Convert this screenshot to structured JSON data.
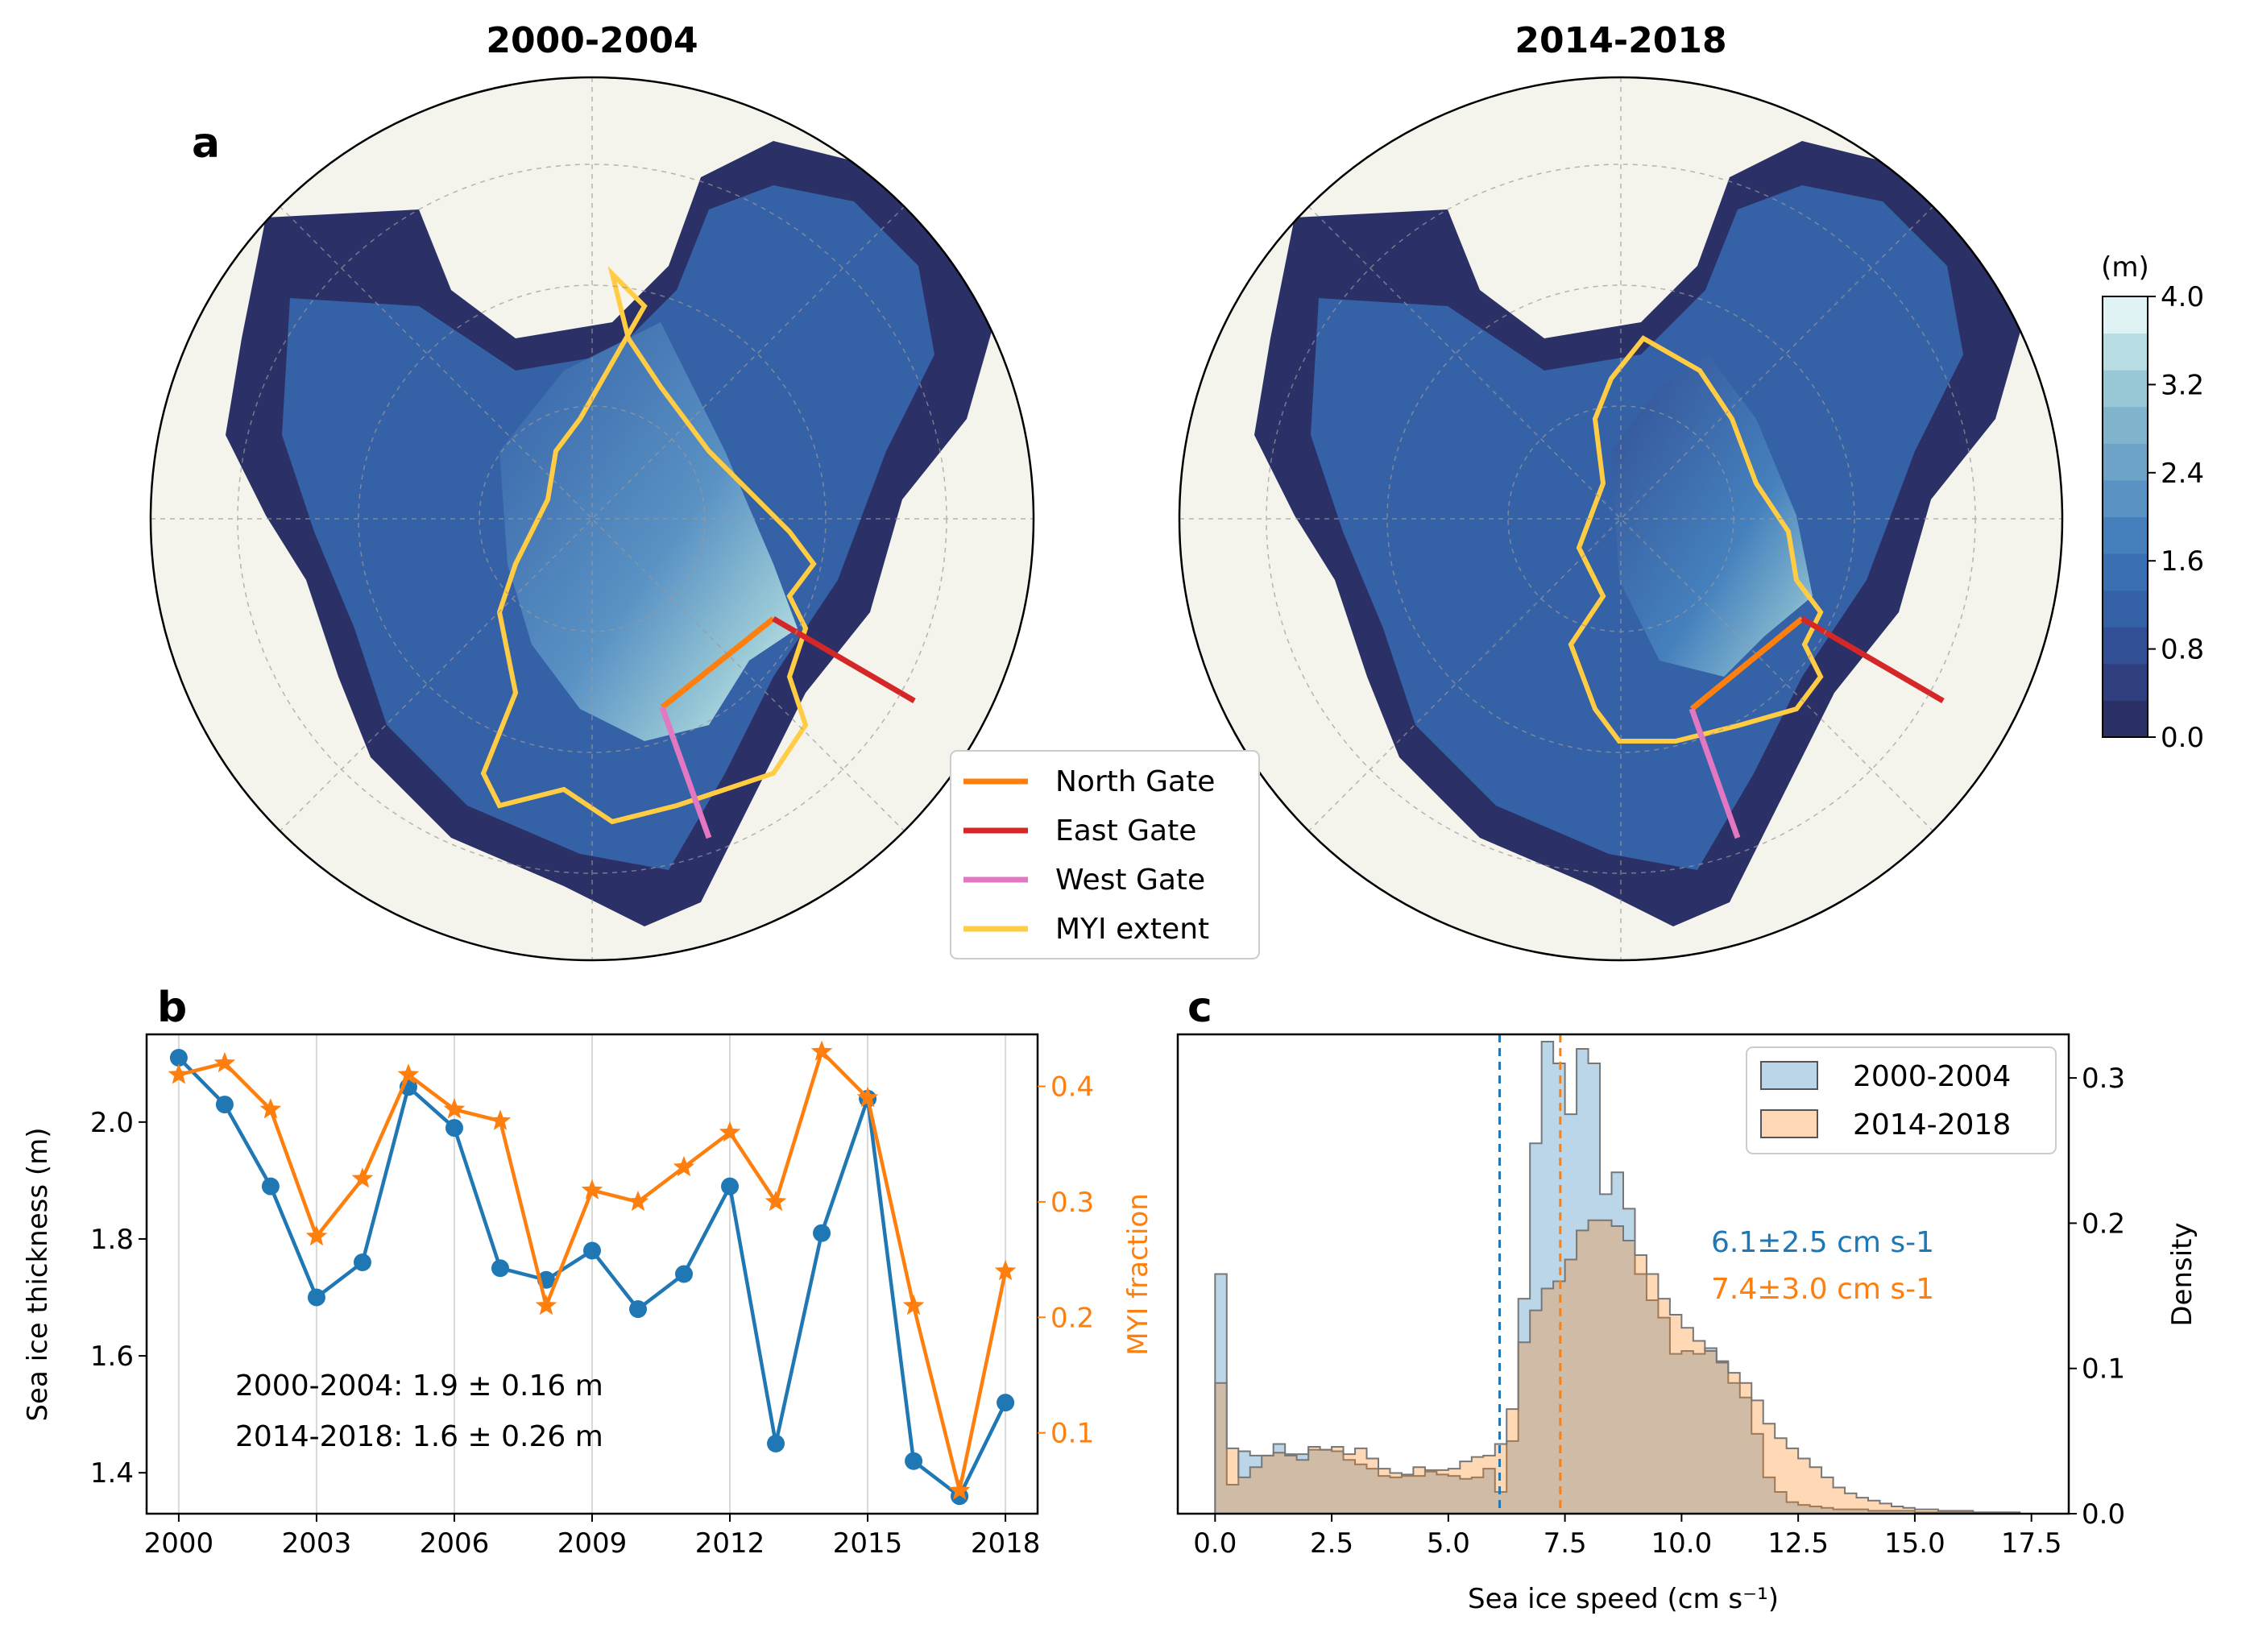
{
  "colors": {
    "series_2000": "#1f77b4",
    "series_2014": "#ff7f0e",
    "north_gate": "#ff7f0e",
    "east_gate": "#d62728",
    "west_gate": "#e377c2",
    "myi_extent": "#ffcc44",
    "land": "#f5f4ec",
    "colormap": [
      "#2b3167",
      "#2f3f7f",
      "#324f95",
      "#3561a7",
      "#3a6fb3",
      "#4580bd",
      "#5a92c4",
      "#6ea3c8",
      "#80b4cd",
      "#98c8d6",
      "#b7dde3",
      "#dff2f4"
    ]
  },
  "panel_a": {
    "label": "a",
    "maps": [
      {
        "title": "2000-2004"
      },
      {
        "title": "2014-2018"
      }
    ],
    "colorbar": {
      "unit": "(m)",
      "min": 0.0,
      "max": 4.0,
      "ticks": [
        "0.0",
        "0.8",
        "1.6",
        "2.4",
        "3.2",
        "4.0"
      ]
    },
    "legend": [
      {
        "label": "North Gate",
        "color": "#ff7f0e"
      },
      {
        "label": "East Gate",
        "color": "#d62728"
      },
      {
        "label": "West Gate",
        "color": "#e377c2"
      },
      {
        "label": "MYI extent",
        "color": "#ffcc44"
      }
    ]
  },
  "chart_data": [
    {
      "panel": "b",
      "type": "line",
      "x": [
        2000,
        2001,
        2002,
        2003,
        2004,
        2005,
        2006,
        2007,
        2008,
        2009,
        2010,
        2011,
        2012,
        2013,
        2014,
        2015,
        2016,
        2017,
        2018
      ],
      "series": [
        {
          "axis": "left",
          "marker": "circle",
          "color": "#1f77b4",
          "values": [
            2.11,
            2.03,
            1.89,
            1.7,
            1.76,
            2.06,
            1.99,
            1.75,
            1.73,
            1.78,
            1.68,
            1.74,
            1.89,
            1.45,
            1.81,
            2.04,
            1.42,
            1.36,
            1.52
          ]
        },
        {
          "axis": "right",
          "marker": "star",
          "color": "#ff7f0e",
          "values": [
            0.41,
            0.42,
            0.38,
            0.27,
            0.32,
            0.41,
            0.38,
            0.37,
            0.21,
            0.31,
            0.3,
            0.33,
            0.36,
            0.3,
            0.43,
            0.39,
            0.21,
            0.05,
            0.24
          ]
        }
      ],
      "xticks": [
        "2000",
        "2003",
        "2006",
        "2009",
        "2012",
        "2015",
        "2018"
      ],
      "xlim": [
        1999.3,
        2018.7
      ],
      "ylabel": "Sea ice thickness (m)",
      "ylim": [
        1.33,
        2.15
      ],
      "yticks": [
        "1.4",
        "1.6",
        "1.8",
        "2.0"
      ],
      "y2label": "MYI fraction",
      "y2lim": [
        0.03,
        0.445
      ],
      "y2ticks": [
        "0.1",
        "0.2",
        "0.3",
        "0.4"
      ],
      "annotations": [
        "2000-2004: 1.9 ± 0.16 m",
        "2014-2018: 1.6 ± 0.26 m"
      ],
      "grid": "x"
    },
    {
      "panel": "c",
      "type": "histogram",
      "bin_width": 0.25,
      "bin_start": 0,
      "series": [
        {
          "name": "2000-2004",
          "color": "#1f77b4",
          "mean": 6.1,
          "density": [
            0.165,
            0.02,
            0.043,
            0.04,
            0.04,
            0.048,
            0.041,
            0.041,
            0.044,
            0.044,
            0.043,
            0.037,
            0.034,
            0.031,
            0.026,
            0.025,
            0.026,
            0.026,
            0.029,
            0.027,
            0.026,
            0.024,
            0.025,
            0.031,
            0.015,
            0.05,
            0.148,
            0.255,
            0.325,
            0.31,
            0.275,
            0.32,
            0.31,
            0.22,
            0.235,
            0.21,
            0.165,
            0.147,
            0.135,
            0.11,
            0.112,
            0.11,
            0.114,
            0.105,
            0.09,
            0.08,
            0.055,
            0.025,
            0.015,
            0.008,
            0.006,
            0.005,
            0.004,
            0.003,
            0.003,
            0.003,
            0.002,
            0.002,
            0.002,
            0.002,
            0.001,
            0.001,
            0.001,
            0.001,
            0.001,
            0.0,
            0.0,
            0.0,
            0.0,
            0.0
          ]
        },
        {
          "name": "2014-2018",
          "color": "#ff7f0e",
          "mean": 7.4,
          "density": [
            0.09,
            0.045,
            0.025,
            0.032,
            0.04,
            0.042,
            0.04,
            0.037,
            0.046,
            0.044,
            0.046,
            0.041,
            0.045,
            0.038,
            0.031,
            0.028,
            0.027,
            0.032,
            0.03,
            0.03,
            0.031,
            0.036,
            0.039,
            0.04,
            0.048,
            0.072,
            0.118,
            0.14,
            0.155,
            0.16,
            0.175,
            0.195,
            0.202,
            0.202,
            0.198,
            0.188,
            0.178,
            0.165,
            0.148,
            0.137,
            0.128,
            0.119,
            0.112,
            0.104,
            0.097,
            0.09,
            0.078,
            0.062,
            0.052,
            0.045,
            0.038,
            0.032,
            0.025,
            0.018,
            0.014,
            0.011,
            0.009,
            0.007,
            0.005,
            0.004,
            0.003,
            0.003,
            0.002,
            0.002,
            0.002,
            0.001,
            0.001,
            0.001,
            0.001,
            0.0
          ]
        }
      ],
      "xlabel": "Sea ice speed (cm s⁻¹)",
      "xlim": [
        -0.8,
        18.3
      ],
      "xticks": [
        "0.0",
        "2.5",
        "5.0",
        "7.5",
        "10.0",
        "12.5",
        "15.0",
        "17.5"
      ],
      "y2label": "Density",
      "ylim": [
        0,
        0.33
      ],
      "yticks": [
        "0.0",
        "0.1",
        "0.2",
        "0.3"
      ],
      "annotations": [
        {
          "text": "6.1±2.5 cm s-1",
          "color": "#1f77b4"
        },
        {
          "text": "7.4±3.0 cm s-1",
          "color": "#ff7f0e"
        }
      ],
      "legend": [
        "2000-2004",
        "2014-2018"
      ],
      "legend_position": "top-right"
    }
  ]
}
